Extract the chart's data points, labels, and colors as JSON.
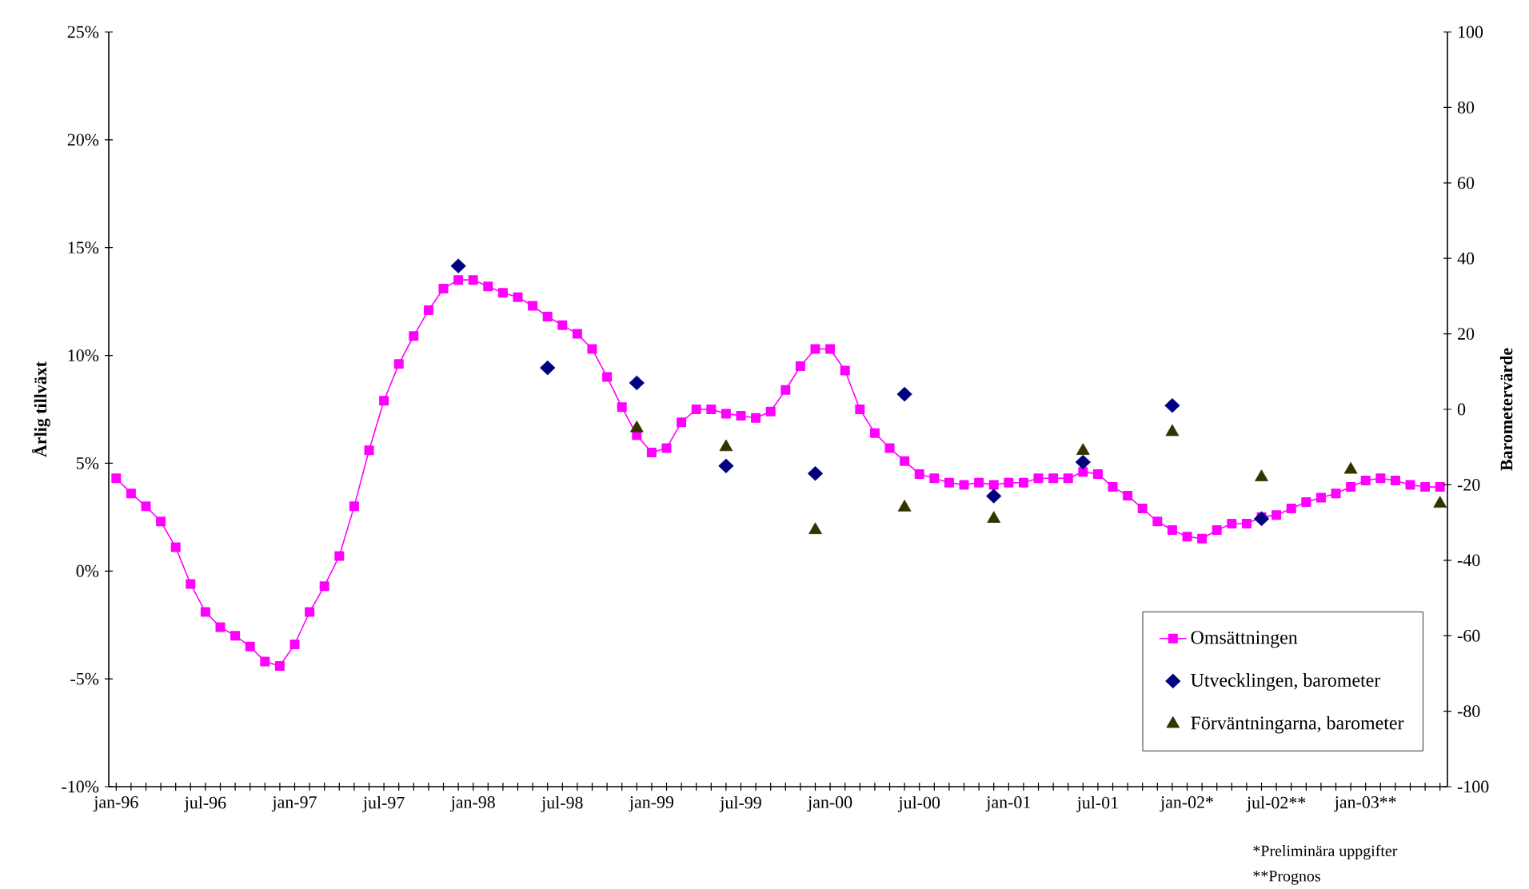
{
  "chart_data": {
    "type": "line",
    "ylabel": "Årlig tillväxt",
    "y2label": "Barometervärde",
    "annotations": [
      "*Preliminära uppgifter",
      "**Prognos"
    ],
    "categories": [
      "jan-96",
      null,
      null,
      null,
      null,
      null,
      "jul-96",
      null,
      null,
      null,
      null,
      null,
      "jan-97",
      null,
      null,
      null,
      null,
      null,
      "jul-97",
      null,
      null,
      null,
      null,
      null,
      "jan-98",
      null,
      null,
      null,
      null,
      null,
      "jul-98",
      null,
      null,
      null,
      null,
      null,
      "jan-99",
      null,
      null,
      null,
      null,
      null,
      "jul-99",
      null,
      null,
      null,
      null,
      null,
      "jan-00",
      null,
      null,
      null,
      null,
      null,
      "jul-00",
      null,
      null,
      null,
      null,
      null,
      "jan-01",
      null,
      null,
      null,
      null,
      null,
      "jul-01",
      null,
      null,
      null,
      null,
      null,
      "jan-02*",
      null,
      null,
      null,
      null,
      null,
      "jul-02**",
      null,
      null,
      null,
      null,
      null,
      "jan-03**",
      null,
      null,
      null,
      null,
      null
    ],
    "series": [
      {
        "name": "Omsättningen",
        "color": "#ff00ff",
        "marker": "square",
        "line_style": "solid",
        "values": [
          4.3,
          3.6,
          3.0,
          2.3,
          1.1,
          -0.6,
          -1.9,
          -2.6,
          -3.0,
          -3.5,
          -4.2,
          -4.4,
          -3.4,
          -1.9,
          -0.7,
          0.7,
          3.0,
          5.6,
          7.9,
          9.6,
          10.9,
          12.1,
          13.1,
          13.5,
          13.5,
          13.2,
          12.9,
          12.7,
          12.3,
          11.8,
          11.4,
          11.0,
          10.3,
          9.0,
          7.6,
          6.3,
          5.5,
          5.7,
          6.9,
          7.5,
          7.5,
          7.3,
          7.2,
          7.1,
          7.4,
          8.4,
          9.5,
          10.3,
          10.3,
          9.3,
          7.5,
          6.4,
          5.7,
          5.1,
          4.5,
          4.3,
          4.1,
          4.0,
          4.1,
          4.0,
          4.1,
          4.1,
          4.3,
          4.3,
          4.3,
          4.6,
          4.5,
          3.9,
          3.5,
          2.9,
          2.3,
          1.9,
          1.6,
          1.5,
          1.9,
          2.2,
          2.2,
          2.5,
          2.6,
          2.9,
          3.2,
          3.4,
          3.6,
          3.9,
          4.2,
          4.3,
          4.2,
          4.0,
          3.9,
          3.9
        ]
      },
      {
        "name": "Utvecklingen, barometer",
        "type": "scatter",
        "axis": "y2",
        "color": "#000080",
        "marker": "diamond",
        "values": [
          null,
          null,
          null,
          null,
          null,
          null,
          null,
          null,
          null,
          null,
          null,
          null,
          null,
          null,
          null,
          null,
          null,
          null,
          null,
          null,
          null,
          null,
          null,
          38,
          null,
          null,
          null,
          null,
          null,
          11,
          null,
          null,
          null,
          null,
          null,
          7,
          null,
          null,
          null,
          null,
          null,
          -15,
          null,
          null,
          null,
          null,
          null,
          -17,
          null,
          null,
          null,
          null,
          null,
          4,
          null,
          null,
          null,
          null,
          null,
          -23,
          null,
          null,
          null,
          null,
          null,
          -14,
          null,
          null,
          null,
          null,
          null,
          1,
          null,
          null,
          null,
          null,
          null,
          -29,
          null,
          null,
          null,
          null,
          null,
          null,
          null,
          null,
          null,
          null,
          null,
          null
        ]
      },
      {
        "name": "Förväntningarna, barometer",
        "type": "scatter",
        "axis": "y2",
        "color": "#333300",
        "marker": "triangle",
        "values": [
          null,
          null,
          null,
          null,
          null,
          null,
          null,
          null,
          null,
          null,
          null,
          null,
          null,
          null,
          null,
          null,
          null,
          null,
          null,
          null,
          null,
          null,
          null,
          null,
          null,
          null,
          null,
          null,
          null,
          null,
          null,
          null,
          null,
          null,
          null,
          -5,
          null,
          null,
          null,
          null,
          null,
          -10,
          null,
          null,
          null,
          null,
          null,
          -32,
          null,
          null,
          null,
          null,
          null,
          -26,
          null,
          null,
          null,
          null,
          null,
          -29,
          null,
          null,
          null,
          null,
          null,
          -11,
          null,
          null,
          null,
          null,
          null,
          -6,
          null,
          null,
          null,
          null,
          null,
          -18,
          null,
          null,
          null,
          null,
          null,
          -16,
          null,
          null,
          null,
          null,
          null,
          -25
        ]
      }
    ],
    "ylim": [
      -10,
      25
    ],
    "yticks": [
      {
        "value": -10,
        "label": "-10%"
      },
      {
        "value": -5,
        "label": "-5%"
      },
      {
        "value": 0,
        "label": "0%"
      },
      {
        "value": 5,
        "label": "5%"
      },
      {
        "value": 10,
        "label": "10%"
      },
      {
        "value": 15,
        "label": "15%"
      },
      {
        "value": 20,
        "label": "20%"
      },
      {
        "value": 25,
        "label": "25%"
      }
    ],
    "y2lim": [
      -100,
      100
    ],
    "y2ticks": [
      -100,
      -80,
      -60,
      -40,
      -20,
      0,
      20,
      40,
      60,
      80,
      100
    ],
    "legend": "bottom right"
  }
}
